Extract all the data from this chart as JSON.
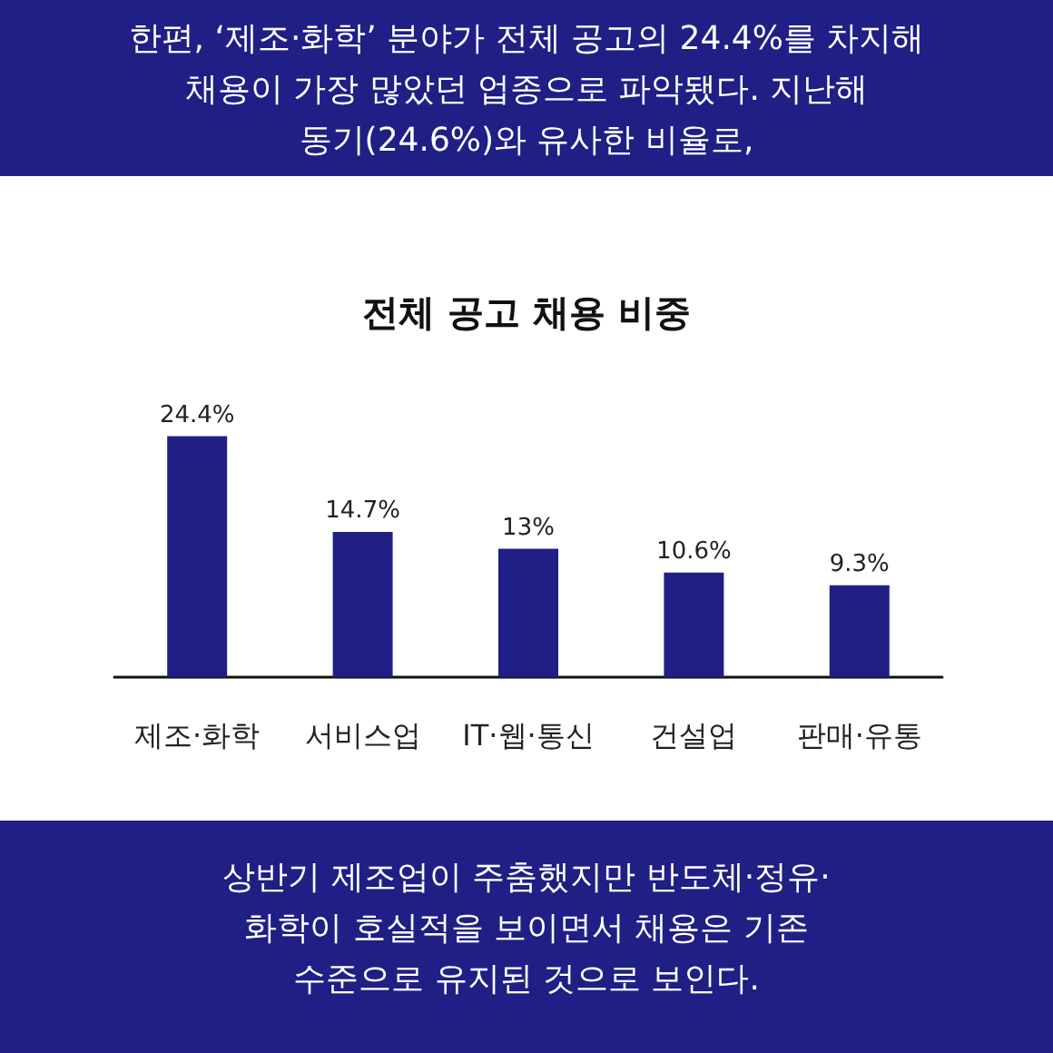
{
  "chart_data": {
    "type": "bar",
    "title": "전체 공고 채용 비중",
    "subtitle": "한편, ‘제조·화학’ 분야가 전체 공고의 24.4%를 차지해\n채용이 가장 많았던 업종으로 파악됐다. 지난해\n동기(24.6%)와 유사한 비율로,",
    "annotations": [
      "상반기 제조업이 주춤했지만 반도체·정유·\n화학이 호실적을 보이면서 채용은 기존\n수준으로 유지된 것으로 보인다."
    ],
    "categories": [
      "제조·화학",
      "서비스업",
      "IT·웹·통신",
      "건설업",
      "판매·유통"
    ],
    "values": [
      24.4,
      14.7,
      13,
      10.6,
      9.3
    ],
    "value_labels": [
      "24.4%",
      "14.7%",
      "13%",
      "10.6%",
      "9.3%"
    ],
    "color": "#1f1f85"
  }
}
